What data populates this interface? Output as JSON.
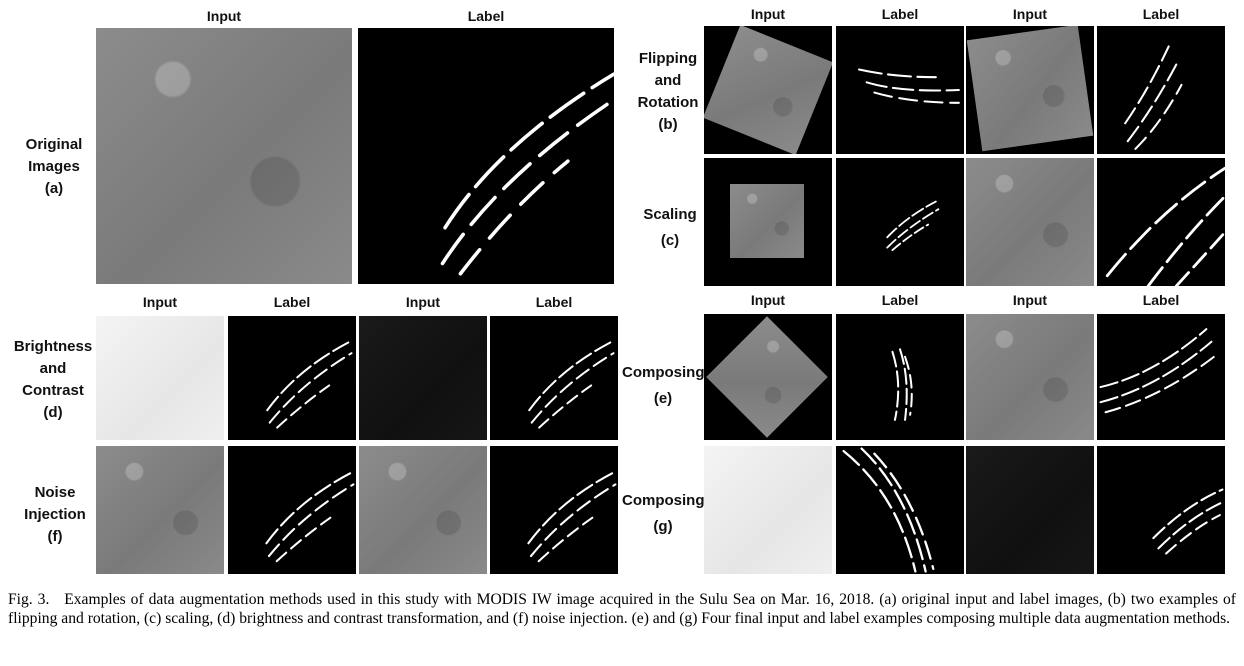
{
  "headers": {
    "input": "Input",
    "label": "Label"
  },
  "groups": {
    "a": {
      "line1": "Original",
      "line2": "Images",
      "tag": "(a)"
    },
    "b": {
      "line1": "Flipping",
      "line2": "and",
      "line3": "Rotation",
      "tag": "(b)"
    },
    "c": {
      "line1": "Scaling",
      "tag": "(c)"
    },
    "d": {
      "line1": "Brightness",
      "line2": "and",
      "line3": "Contrast",
      "tag": "(d)"
    },
    "e": {
      "line1": "Composing",
      "tag": "(e)"
    },
    "f": {
      "line1": "Noise",
      "line2": "Injection",
      "tag": "(f)"
    },
    "g": {
      "line1": "Composing",
      "tag": "(g)"
    }
  },
  "caption": {
    "fig": "Fig. 3.",
    "text": "Examples of data augmentation methods used in this study with MODIS IW image acquired in the Sulu Sea on Mar. 16, 2018. (a) original input and label images, (b) two examples of flipping and rotation, (c) scaling, (d) brightness and contrast transformation, and (f) noise injection. (e) and (g) Four final input and label examples composing multiple data augmentation methods."
  }
}
